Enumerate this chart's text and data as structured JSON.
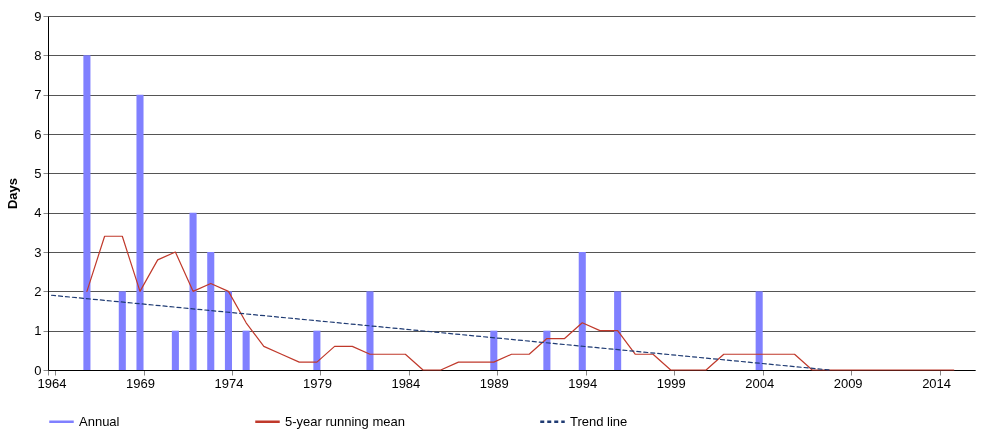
{
  "chart_data": {
    "type": "bar",
    "ylabel": "Days",
    "categories": [
      "1964",
      null,
      null,
      null,
      null,
      "1969",
      null,
      null,
      null,
      null,
      "1974",
      null,
      null,
      null,
      null,
      "1979",
      null,
      null,
      null,
      null,
      "1984",
      null,
      null,
      null,
      null,
      "1989",
      null,
      null,
      null,
      null,
      "1994",
      null,
      null,
      null,
      null,
      "1999",
      null,
      null,
      null,
      null,
      "2004",
      null,
      null,
      null,
      null,
      "2009",
      null,
      null,
      null,
      null,
      "2014",
      null,
      null
    ],
    "series": [
      {
        "name": "Annual",
        "color": "#8080ff",
        "values": [
          null,
          null,
          8,
          0,
          2,
          7,
          0,
          1,
          4,
          3,
          2,
          1,
          0,
          0,
          0,
          1,
          0,
          0,
          2,
          0,
          0,
          0,
          0,
          0,
          0,
          1,
          0,
          0,
          1,
          0,
          3,
          0,
          2,
          0,
          0,
          0,
          0,
          0,
          0,
          0,
          2,
          0,
          0,
          0,
          0,
          0,
          0,
          0,
          0,
          0,
          0,
          0,
          null
        ]
      },
      {
        "name": "5-year running mean",
        "type": "line",
        "color": "#c0392b",
        "line_style": "solid",
        "values": [
          null,
          null,
          2,
          3.4,
          3.4,
          2,
          2.8,
          3,
          2,
          2.2,
          2,
          1.2,
          0.6,
          0.4,
          0.2,
          0.2,
          0.6,
          0.6,
          0.4,
          0.4,
          0.4,
          0,
          0,
          0.2,
          0.2,
          0.2,
          0.4,
          0.4,
          0.8,
          0.8,
          1.2,
          1,
          1,
          0.4,
          0.4,
          0,
          0,
          0,
          0.4,
          0.4,
          0.4,
          0.4,
          0.4,
          0,
          0,
          0,
          0,
          0,
          0,
          0,
          0,
          0,
          null
        ]
      },
      {
        "name": "Trend line",
        "type": "line",
        "color": "#1f3b73",
        "line_style": "dashed",
        "values": [
          1.9,
          null,
          null,
          null,
          null,
          null,
          null,
          null,
          null,
          null,
          null,
          null,
          null,
          null,
          null,
          null,
          null,
          null,
          null,
          null,
          null,
          null,
          null,
          null,
          null,
          null,
          null,
          null,
          null,
          null,
          null,
          null,
          null,
          null,
          null,
          null,
          null,
          null,
          null,
          null,
          null,
          null,
          null,
          null,
          0,
          null,
          null,
          null,
          null,
          null,
          null,
          null,
          null
        ]
      }
    ],
    "ylim": [
      0,
      9
    ],
    "yticks": [
      0,
      1,
      2,
      3,
      4,
      5,
      6,
      7,
      8,
      9
    ],
    "grid": "y",
    "legend": "bottom"
  }
}
